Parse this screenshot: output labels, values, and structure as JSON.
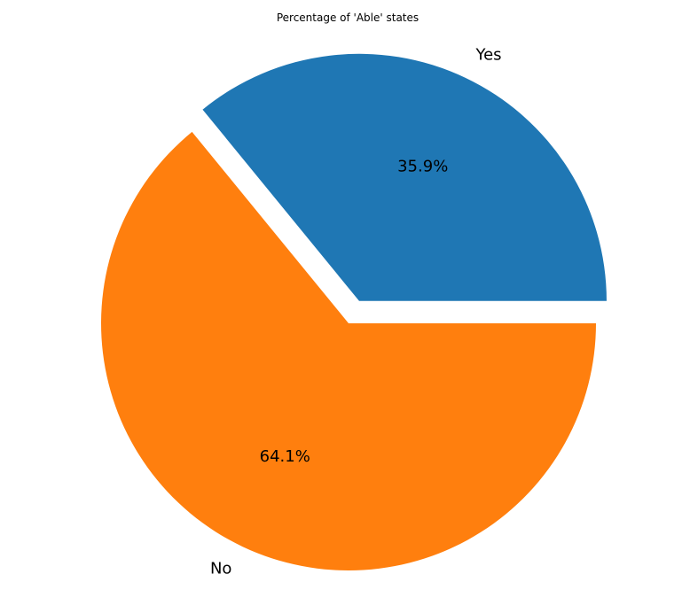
{
  "chart_data": {
    "type": "pie",
    "title": "Percentage of 'Able' states",
    "categories": [
      "Yes",
      "No"
    ],
    "values": [
      35.9,
      64.1
    ],
    "percent_labels": [
      "35.9%",
      "64.1%"
    ],
    "colors": [
      "#1f77b4",
      "#ff7f0e"
    ],
    "exploded": [
      "Yes"
    ],
    "start_angle_deg": 0,
    "direction": "counterclockwise"
  }
}
